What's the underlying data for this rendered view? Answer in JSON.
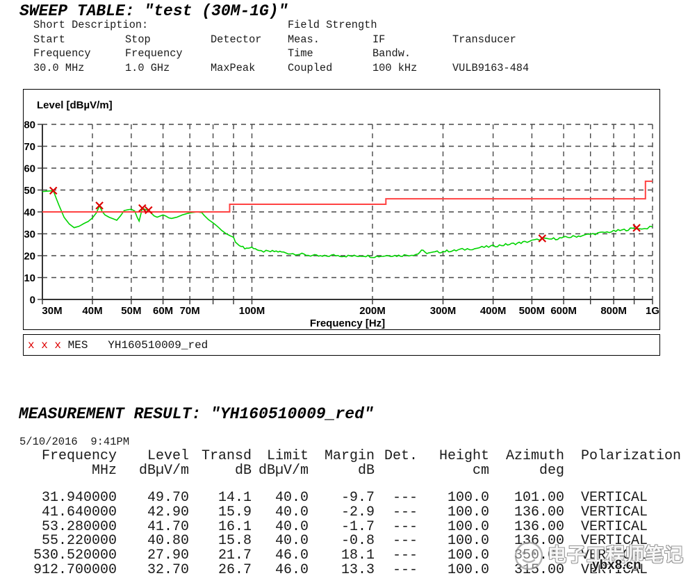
{
  "sweep_table": {
    "title": "SWEEP TABLE: \"test (30M-1G)\"",
    "short_description_label": "Short Description:",
    "short_description_value": "Field Strength",
    "columns": [
      {
        "h1": "Start",
        "h2": "Frequency",
        "value": "30.0 MHz"
      },
      {
        "h1": "Stop",
        "h2": "Frequency",
        "value": "1.0 GHz"
      },
      {
        "h1": "Detector",
        "h2": "",
        "value": "MaxPeak"
      },
      {
        "h1": "Meas.",
        "h2": "Time",
        "value": "Coupled"
      },
      {
        "h1": "IF",
        "h2": "Bandw.",
        "value": "100 kHz"
      },
      {
        "h1": "Transducer",
        "h2": "",
        "value": "VULB9163-484"
      }
    ]
  },
  "chart_data": {
    "type": "line",
    "title": "Level [dBµV/m]",
    "xlabel": "Frequency [Hz]",
    "x_scale": "log",
    "xlim_mhz": [
      30,
      1000
    ],
    "ylim": [
      0,
      80
    ],
    "y_tick_step": 10,
    "grid": true,
    "x_ticks": [
      {
        "mhz": 30,
        "label": "30M"
      },
      {
        "mhz": 40,
        "label": "40M"
      },
      {
        "mhz": 50,
        "label": "50M"
      },
      {
        "mhz": 60,
        "label": "60M"
      },
      {
        "mhz": 70,
        "label": "70M"
      },
      {
        "mhz": 80,
        "label": ""
      },
      {
        "mhz": 90,
        "label": ""
      },
      {
        "mhz": 100,
        "label": "100M"
      },
      {
        "mhz": 200,
        "label": "200M"
      },
      {
        "mhz": 300,
        "label": "300M"
      },
      {
        "mhz": 400,
        "label": "400M"
      },
      {
        "mhz": 500,
        "label": "500M"
      },
      {
        "mhz": 600,
        "label": "600M"
      },
      {
        "mhz": 700,
        "label": ""
      },
      {
        "mhz": 800,
        "label": "800M"
      },
      {
        "mhz": 900,
        "label": ""
      },
      {
        "mhz": 1000,
        "label": "1G"
      }
    ],
    "series": [
      {
        "name": "MES YH160510009_red",
        "role": "measurement",
        "color": "#00d400",
        "noise_db": 0.55,
        "noise_above_mhz": 95,
        "points_mhz_db": [
          [
            30,
            49.3
          ],
          [
            31.94,
            49.7
          ],
          [
            33,
            43
          ],
          [
            34,
            37.5
          ],
          [
            35,
            34.5
          ],
          [
            36,
            32.8
          ],
          [
            37,
            33.4
          ],
          [
            38,
            34.6
          ],
          [
            39,
            35.6
          ],
          [
            40,
            37.2
          ],
          [
            41,
            39.8
          ],
          [
            41.64,
            42.9
          ],
          [
            42.3,
            40.2
          ],
          [
            43,
            38.6
          ],
          [
            44,
            37.6
          ],
          [
            45,
            36.9
          ],
          [
            46,
            36.2
          ],
          [
            47,
            38.2
          ],
          [
            48,
            40.6
          ],
          [
            49,
            41
          ],
          [
            50,
            41.2
          ],
          [
            51,
            40.4
          ],
          [
            51.7,
            37.6
          ],
          [
            52.3,
            35.8
          ],
          [
            53.28,
            41.7
          ],
          [
            54.2,
            41.1
          ],
          [
            55.22,
            40.8
          ],
          [
            56,
            39.6
          ],
          [
            57,
            38.2
          ],
          [
            58,
            37.6
          ],
          [
            59,
            38.1
          ],
          [
            60,
            38.6
          ],
          [
            61,
            38.1
          ],
          [
            62,
            37.3
          ],
          [
            63,
            37
          ],
          [
            65,
            37.6
          ],
          [
            67,
            38.6
          ],
          [
            69,
            39.3
          ],
          [
            71,
            39.7
          ],
          [
            73,
            40
          ],
          [
            75,
            39.7
          ],
          [
            76,
            38.4
          ],
          [
            78,
            36.4
          ],
          [
            80,
            35
          ],
          [
            82,
            33.4
          ],
          [
            84,
            31.6
          ],
          [
            86,
            30.2
          ],
          [
            88,
            29.2
          ],
          [
            90,
            28.4
          ],
          [
            91,
            26.2
          ],
          [
            93,
            24.6
          ],
          [
            95,
            23.8
          ],
          [
            97,
            23.4
          ],
          [
            100,
            23.8
          ],
          [
            102,
            23.4
          ],
          [
            104,
            21.9
          ],
          [
            107,
            22
          ],
          [
            110,
            21.8
          ],
          [
            115,
            22
          ],
          [
            120,
            21.5
          ],
          [
            125,
            21
          ],
          [
            130,
            20.8
          ],
          [
            135,
            20.5
          ],
          [
            140,
            20.1
          ],
          [
            145,
            19.9
          ],
          [
            150,
            19.6
          ],
          [
            160,
            20.2
          ],
          [
            170,
            19.9
          ],
          [
            180,
            19.8
          ],
          [
            190,
            20.1
          ],
          [
            200,
            19.6
          ],
          [
            210,
            19.8
          ],
          [
            220,
            20.2
          ],
          [
            230,
            20
          ],
          [
            240,
            20.2
          ],
          [
            250,
            20.4
          ],
          [
            260,
            20.8
          ],
          [
            265,
            22.6
          ],
          [
            270,
            21.4
          ],
          [
            280,
            21.2
          ],
          [
            290,
            21.7
          ],
          [
            300,
            21.9
          ],
          [
            310,
            22.2
          ],
          [
            320,
            22.2
          ],
          [
            330,
            22.7
          ],
          [
            340,
            22.9
          ],
          [
            350,
            23.2
          ],
          [
            360,
            23.2
          ],
          [
            370,
            23.7
          ],
          [
            380,
            23.9
          ],
          [
            390,
            24.1
          ],
          [
            400,
            24.4
          ],
          [
            420,
            24.8
          ],
          [
            440,
            25.2
          ],
          [
            460,
            25.7
          ],
          [
            480,
            26.2
          ],
          [
            500,
            26.8
          ],
          [
            515,
            27.2
          ],
          [
            530.52,
            27.9
          ],
          [
            545,
            27.4
          ],
          [
            560,
            27.6
          ],
          [
            580,
            27.9
          ],
          [
            600,
            28.2
          ],
          [
            620,
            28.5
          ],
          [
            640,
            28.8
          ],
          [
            660,
            29.1
          ],
          [
            680,
            29.4
          ],
          [
            700,
            29.8
          ],
          [
            720,
            30.1
          ],
          [
            740,
            30.3
          ],
          [
            760,
            30.6
          ],
          [
            780,
            30.9
          ],
          [
            800,
            31.1
          ],
          [
            820,
            31.4
          ],
          [
            840,
            31.6
          ],
          [
            860,
            31.9
          ],
          [
            880,
            32.2
          ],
          [
            900,
            32.5
          ],
          [
            912.7,
            32.7
          ],
          [
            925,
            32.2
          ],
          [
            940,
            32.5
          ],
          [
            955,
            32.3
          ],
          [
            970,
            32.7
          ],
          [
            985,
            32.9
          ],
          [
            1000,
            33.2
          ]
        ]
      },
      {
        "name": "Limit",
        "role": "limit-line",
        "color": "#ff4242",
        "points_mhz_db": [
          [
            30,
            40
          ],
          [
            88,
            40
          ],
          [
            88,
            43.5
          ],
          [
            216,
            43.5
          ],
          [
            216,
            46
          ],
          [
            960,
            46
          ],
          [
            960,
            54
          ],
          [
            1000,
            54
          ]
        ]
      }
    ],
    "markers": {
      "symbol": "x",
      "color": "#dd0000",
      "points_mhz_db": [
        [
          31.94,
          49.7
        ],
        [
          41.64,
          42.9
        ],
        [
          53.28,
          41.7
        ],
        [
          55.22,
          40.8
        ],
        [
          530.52,
          27.9
        ],
        [
          912.7,
          32.7
        ]
      ]
    }
  },
  "legend": {
    "marker_symbol": "x x x",
    "detector_label": "MES",
    "trace_label": "YH160510009_red"
  },
  "result": {
    "title": "MEASUREMENT RESULT: \"YH160510009_red\"",
    "datetime": "5/10/2016  9:41PM",
    "columns": [
      {
        "name": "Frequency",
        "unit": "MHz"
      },
      {
        "name": "Level",
        "unit": "dBµV/m"
      },
      {
        "name": "Transd",
        "unit": "dB"
      },
      {
        "name": "Limit",
        "unit": "dBµV/m"
      },
      {
        "name": "Margin",
        "unit": "dB"
      },
      {
        "name": "Det.",
        "unit": ""
      },
      {
        "name": "Height",
        "unit": "cm"
      },
      {
        "name": "Azimuth",
        "unit": "deg"
      },
      {
        "name": "Polarization",
        "unit": ""
      }
    ],
    "rows": [
      [
        "31.940000",
        "49.70",
        "14.1",
        "40.0",
        "-9.7",
        "---",
        "100.0",
        "101.00",
        "VERTICAL"
      ],
      [
        "41.640000",
        "42.90",
        "15.9",
        "40.0",
        "-2.9",
        "---",
        "100.0",
        "136.00",
        "VERTICAL"
      ],
      [
        "53.280000",
        "41.70",
        "16.1",
        "40.0",
        "-1.7",
        "---",
        "100.0",
        "136.00",
        "VERTICAL"
      ],
      [
        "55.220000",
        "40.80",
        "15.8",
        "40.0",
        "-0.8",
        "---",
        "100.0",
        "136.00",
        "VERTICAL"
      ],
      [
        "530.520000",
        "27.90",
        "21.7",
        "46.0",
        "18.1",
        "---",
        "100.0",
        "350.00",
        "VERTICAL"
      ],
      [
        "912.700000",
        "32.70",
        "26.7",
        "46.0",
        "13.3",
        "---",
        "100.0",
        "315.00",
        "VERTICAL"
      ]
    ]
  },
  "watermark": {
    "brand_text": "电子工程师笔记",
    "site_text": "ybx8.cn"
  }
}
